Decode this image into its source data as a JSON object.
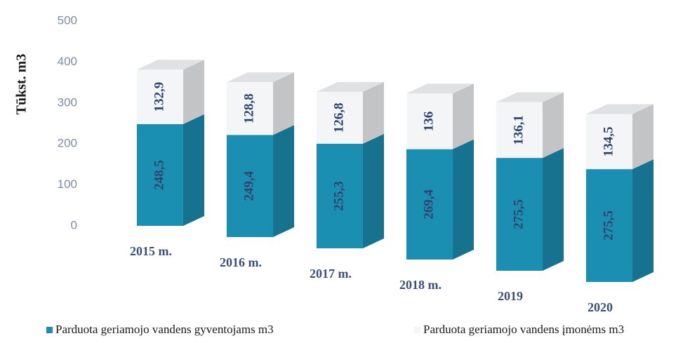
{
  "chart_data": {
    "type": "bar",
    "stacked": true,
    "ylabel": "Tūkst. m3",
    "categories": [
      "2015 m.",
      "2016 m.",
      "2017 m.",
      "2018 m.",
      "2019",
      "2020"
    ],
    "series": [
      {
        "name": "Parduota geriamojo vandens gyventojams m3",
        "color": "#1b8fb1",
        "values": [
          248.5,
          249.4,
          255.3,
          269.4,
          275.5,
          275.5
        ],
        "value_labels": [
          "248,5",
          "249,4",
          "255,3",
          "269,4",
          "275,5",
          "275,5"
        ]
      },
      {
        "name": "Parduota geriamojo vandens įmonėms m3",
        "color": "#f3f5f7",
        "values": [
          132.9,
          128.8,
          126.8,
          136,
          136.1,
          134.5
        ],
        "value_labels": [
          "132,9",
          "128,8",
          "126,8",
          "136",
          "136,1",
          "134,5"
        ]
      }
    ],
    "ylim": [
      0,
      500
    ],
    "yticks": [
      0,
      100,
      200,
      300,
      400,
      500
    ],
    "legend": "bottom"
  }
}
